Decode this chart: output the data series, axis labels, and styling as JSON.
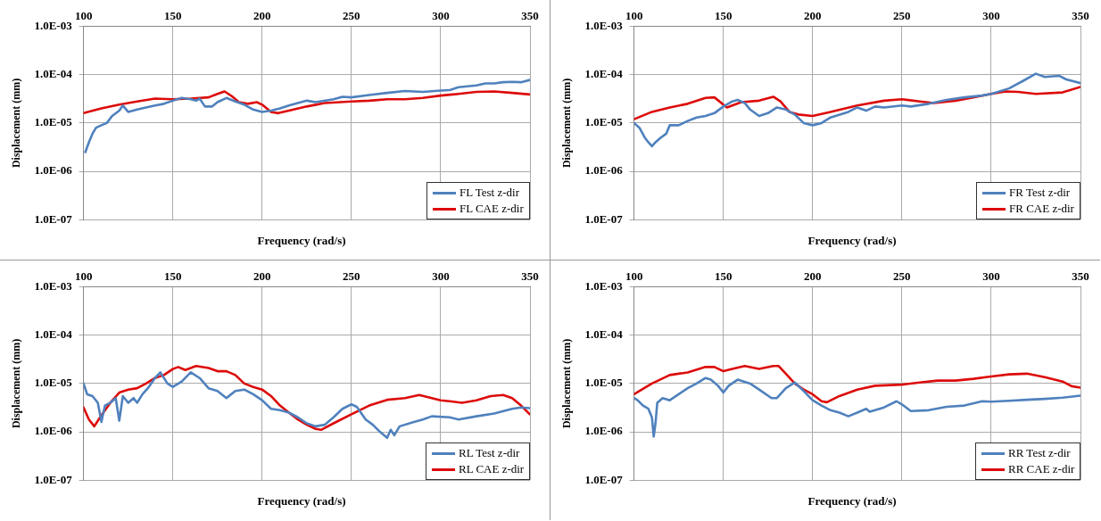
{
  "chart_data": [
    {
      "type": "line",
      "xlabel": "Frequency (rad/s)",
      "ylabel": "Displacement (mm)",
      "xlim": [
        100,
        350
      ],
      "xticks": [
        100,
        150,
        200,
        250,
        300,
        350
      ],
      "ylim": [
        1e-07,
        0.001
      ],
      "yticks": [
        {
          "value": 1e-07,
          "label": "1.0E-07"
        },
        {
          "value": 1e-06,
          "label": "1.0E-06"
        },
        {
          "value": 1e-05,
          "label": "1.0E-05"
        },
        {
          "value": 0.0001,
          "label": "1.0E-04"
        },
        {
          "value": 0.001,
          "label": "1.0E-03"
        }
      ],
      "log": "y",
      "grid": true,
      "legend": "bottom right",
      "marker": "none",
      "line_style": "solid",
      "series": [
        {
          "name": "FL Test z-dir",
          "color": "#4f81bd",
          "x": [
            101,
            103,
            105,
            107,
            110,
            113,
            116,
            120,
            122,
            125,
            130,
            135,
            140,
            145,
            150,
            155,
            160,
            163,
            165,
            168,
            172,
            175,
            180,
            185,
            190,
            195,
            200,
            205,
            210,
            215,
            220,
            225,
            230,
            240,
            245,
            250,
            260,
            270,
            280,
            290,
            300,
            305,
            310,
            320,
            325,
            330,
            335,
            340,
            345,
            350
          ],
          "values": [
            2.5e-06,
            4e-06,
            6e-06,
            8e-06,
            9e-06,
            1e-05,
            1.4e-05,
            1.8e-05,
            2.3e-05,
            1.7e-05,
            1.9e-05,
            2.1e-05,
            2.3e-05,
            2.5e-05,
            2.9e-05,
            3.3e-05,
            3.1e-05,
            2.9e-05,
            3.2e-05,
            2.2e-05,
            2.2e-05,
            2.7e-05,
            3.3e-05,
            2.8e-05,
            2.4e-05,
            1.9e-05,
            1.7e-05,
            1.8e-05,
            2e-05,
            2.3e-05,
            2.6e-05,
            2.9e-05,
            2.7e-05,
            3.1e-05,
            3.5e-05,
            3.4e-05,
            3.8e-05,
            4.2e-05,
            4.6e-05,
            4.4e-05,
            4.7e-05,
            4.8e-05,
            5.5e-05,
            6e-05,
            6.6e-05,
            6.6e-05,
            7e-05,
            7.1e-05,
            7e-05,
            7.8e-05
          ]
        },
        {
          "name": "FL CAE z-dir",
          "color": "#dd0a0a",
          "x": [
            100,
            110,
            120,
            130,
            140,
            150,
            160,
            170,
            175,
            179,
            183,
            187,
            192,
            197,
            200,
            205,
            209,
            215,
            225,
            235,
            250,
            260,
            270,
            280,
            290,
            300,
            310,
            320,
            330,
            340,
            350
          ],
          "values": [
            1.6e-05,
            2e-05,
            2.4e-05,
            2.8e-05,
            3.2e-05,
            3.1e-05,
            3.2e-05,
            3.4e-05,
            4e-05,
            4.5e-05,
            3.6e-05,
            2.7e-05,
            2.5e-05,
            2.7e-05,
            2.4e-05,
            1.7e-05,
            1.6e-05,
            1.8e-05,
            2.2e-05,
            2.6e-05,
            2.8e-05,
            2.9e-05,
            3.1e-05,
            3.1e-05,
            3.3e-05,
            3.7e-05,
            4e-05,
            4.4e-05,
            4.5e-05,
            4.2e-05,
            3.9e-05
          ]
        }
      ]
    },
    {
      "type": "line",
      "xlabel": "Frequency (rad/s)",
      "ylabel": "Displacement (mm)",
      "xlim": [
        100,
        350
      ],
      "xticks": [
        100,
        150,
        200,
        250,
        300,
        350
      ],
      "ylim": [
        1e-07,
        0.001
      ],
      "yticks": [
        {
          "value": 1e-07,
          "label": "1.0E-07"
        },
        {
          "value": 1e-06,
          "label": "1.0E-06"
        },
        {
          "value": 1e-05,
          "label": "1.0E-05"
        },
        {
          "value": 0.0001,
          "label": "1.0E-04"
        },
        {
          "value": 0.001,
          "label": "1.0E-03"
        }
      ],
      "log": "y",
      "grid": true,
      "legend": "bottom right",
      "marker": "none",
      "line_style": "solid",
      "series": [
        {
          "name": "FR Test z-dir",
          "color": "#4f81bd",
          "x": [
            100,
            103,
            106,
            108,
            110,
            112,
            115,
            118,
            120,
            125,
            130,
            135,
            140,
            145,
            150,
            155,
            158,
            162,
            165,
            170,
            175,
            180,
            185,
            190,
            195,
            200,
            205,
            210,
            220,
            225,
            230,
            235,
            240,
            250,
            255,
            265,
            275,
            285,
            295,
            300,
            310,
            318,
            325,
            330,
            338,
            342,
            350
          ],
          "values": [
            1e-05,
            8e-06,
            5e-06,
            4e-06,
            3.3e-06,
            4e-06,
            5e-06,
            6e-06,
            9e-06,
            9e-06,
            1.1e-05,
            1.3e-05,
            1.4e-05,
            1.6e-05,
            2.2e-05,
            2.8e-05,
            3e-05,
            2.6e-05,
            1.9e-05,
            1.4e-05,
            1.6e-05,
            2.1e-05,
            1.9e-05,
            1.5e-05,
            1e-05,
            9e-06,
            1e-05,
            1.3e-05,
            1.7e-05,
            2.1e-05,
            1.8e-05,
            2.2e-05,
            2.1e-05,
            2.3e-05,
            2.2e-05,
            2.5e-05,
            3e-05,
            3.4e-05,
            3.7e-05,
            4e-05,
            5.2e-05,
            7.5e-05,
            0.000105,
            9e-05,
            9.5e-05,
            8e-05,
            6.7e-05
          ]
        },
        {
          "name": "FR CAE z-dir",
          "color": "#dd0a0a",
          "x": [
            100,
            110,
            120,
            130,
            140,
            145,
            150,
            152,
            160,
            170,
            178,
            182,
            187,
            192,
            200,
            210,
            225,
            240,
            250,
            260,
            268,
            280,
            290,
            300,
            308,
            315,
            325,
            340,
            350
          ],
          "values": [
            1.2e-05,
            1.7e-05,
            2.1e-05,
            2.5e-05,
            3.3e-05,
            3.4e-05,
            2.4e-05,
            2.1e-05,
            2.7e-05,
            2.9e-05,
            3.5e-05,
            2.8e-05,
            1.7e-05,
            1.5e-05,
            1.4e-05,
            1.7e-05,
            2.3e-05,
            2.9e-05,
            3.1e-05,
            2.8e-05,
            2.6e-05,
            2.9e-05,
            3.4e-05,
            4e-05,
            4.5e-05,
            4.4e-05,
            4e-05,
            4.3e-05,
            5.6e-05
          ]
        }
      ]
    },
    {
      "type": "line",
      "xlabel": "Frequency (rad/s)",
      "ylabel": "Displacement (mm)",
      "xlim": [
        100,
        350
      ],
      "xticks": [
        100,
        150,
        200,
        250,
        300,
        350
      ],
      "ylim": [
        1e-07,
        0.001
      ],
      "yticks": [
        {
          "value": 1e-07,
          "label": "1.0E-07"
        },
        {
          "value": 1e-06,
          "label": "1.0E-06"
        },
        {
          "value": 1e-05,
          "label": "1.0E-05"
        },
        {
          "value": 0.0001,
          "label": "1.0E-04"
        },
        {
          "value": 0.001,
          "label": "1.0E-03"
        }
      ],
      "log": "y",
      "grid": true,
      "legend": "bottom right",
      "marker": "none",
      "line_style": "solid",
      "series": [
        {
          "name": "RL Test z-dir",
          "color": "#4f81bd",
          "x": [
            100,
            102,
            105,
            108,
            110,
            112,
            115,
            118,
            120,
            122,
            125,
            128,
            130,
            133,
            136,
            140,
            143,
            147,
            150,
            155,
            160,
            165,
            170,
            175,
            180,
            185,
            190,
            195,
            200,
            205,
            210,
            215,
            220,
            225,
            230,
            235,
            240,
            245,
            250,
            253,
            258,
            262,
            266,
            270,
            272,
            274,
            277,
            285,
            290,
            295,
            305,
            310,
            320,
            330,
            340,
            345,
            350
          ],
          "values": [
            1e-05,
            6e-06,
            5.5e-06,
            4e-06,
            1.6e-06,
            3.5e-06,
            4e-06,
            5e-06,
            1.7e-06,
            5.5e-06,
            4e-06,
            5e-06,
            4e-06,
            6e-06,
            8e-06,
            1.3e-05,
            1.7e-05,
            1e-05,
            8.5e-06,
            1.1e-05,
            1.7e-05,
            1.3e-05,
            8e-06,
            7e-06,
            5e-06,
            7e-06,
            7.5e-06,
            6e-06,
            4.5e-06,
            3e-06,
            2.8e-06,
            2.5e-06,
            2e-06,
            1.5e-06,
            1.3e-06,
            1.4e-06,
            2e-06,
            3e-06,
            3.7e-06,
            3.3e-06,
            1.8e-06,
            1.4e-06,
            1e-06,
            7.5e-07,
            1.1e-06,
            8.5e-07,
            1.3e-06,
            1.6e-06,
            1.8e-06,
            2.1e-06,
            2e-06,
            1.8e-06,
            2.1e-06,
            2.4e-06,
            3e-06,
            3.2e-06,
            3.1e-06
          ]
        },
        {
          "name": "RL CAE z-dir",
          "color": "#dd0a0a",
          "x": [
            100,
            103,
            106,
            110,
            115,
            120,
            125,
            130,
            135,
            140,
            145,
            150,
            153,
            157,
            163,
            170,
            175,
            180,
            185,
            190,
            195,
            200,
            205,
            210,
            215,
            220,
            225,
            230,
            233,
            240,
            250,
            260,
            270,
            280,
            288,
            295,
            300,
            305,
            312,
            320,
            328,
            335,
            340,
            345,
            350
          ],
          "values": [
            3.2e-06,
            1.8e-06,
            1.3e-06,
            2.2e-06,
            4e-06,
            6.5e-06,
            7.5e-06,
            8e-06,
            1e-05,
            1.3e-05,
            1.5e-05,
            2e-05,
            2.2e-05,
            1.9e-05,
            2.3e-05,
            2.1e-05,
            1.8e-05,
            1.8e-05,
            1.5e-05,
            1e-05,
            8.5e-06,
            7.5e-06,
            5.5e-06,
            3.5e-06,
            2.5e-06,
            1.8e-06,
            1.4e-06,
            1.15e-06,
            1.1e-06,
            1.5e-06,
            2.3e-06,
            3.5e-06,
            4.6e-06,
            5e-06,
            5.8e-06,
            5e-06,
            4.5e-06,
            4.3e-06,
            4e-06,
            4.5e-06,
            5.5e-06,
            5.8e-06,
            5e-06,
            3.5e-06,
            2.3e-06
          ]
        }
      ]
    },
    {
      "type": "line",
      "xlabel": "Frequency (rad/s)",
      "ylabel": "Displacement (mm)",
      "xlim": [
        100,
        350
      ],
      "xticks": [
        100,
        150,
        200,
        250,
        300,
        350
      ],
      "ylim": [
        1e-07,
        0.001
      ],
      "yticks": [
        {
          "value": 1e-07,
          "label": "1.0E-07"
        },
        {
          "value": 1e-06,
          "label": "1.0E-06"
        },
        {
          "value": 1e-05,
          "label": "1.0E-05"
        },
        {
          "value": 0.0001,
          "label": "1.0E-04"
        },
        {
          "value": 0.001,
          "label": "1.0E-03"
        }
      ],
      "log": "y",
      "grid": true,
      "legend": "bottom right",
      "marker": "none",
      "line_style": "solid",
      "series": [
        {
          "name": "RR Test z-dir",
          "color": "#4f81bd",
          "x": [
            100,
            102,
            105,
            108,
            110,
            111,
            112,
            113,
            116,
            120,
            125,
            130,
            135,
            140,
            143,
            147,
            150,
            153,
            158,
            165,
            170,
            177,
            180,
            185,
            190,
            195,
            200,
            205,
            210,
            215,
            220,
            225,
            230,
            232,
            240,
            247,
            250,
            255,
            265,
            275,
            285,
            295,
            300,
            310,
            320,
            330,
            340,
            350
          ],
          "values": [
            5e-06,
            4.5e-06,
            3.5e-06,
            3e-06,
            2e-06,
            8e-07,
            1.5e-06,
            4e-06,
            5e-06,
            4.5e-06,
            6e-06,
            8e-06,
            1e-05,
            1.3e-05,
            1.2e-05,
            9e-06,
            6.5e-06,
            9e-06,
            1.2e-05,
            1e-05,
            7.5e-06,
            5e-06,
            5e-06,
            8e-06,
            1.05e-05,
            7e-06,
            4.5e-06,
            3.5e-06,
            2.8e-06,
            2.5e-06,
            2.1e-06,
            2.5e-06,
            3e-06,
            2.6e-06,
            3.2e-06,
            4.3e-06,
            3.7e-06,
            2.7e-06,
            2.8e-06,
            3.3e-06,
            3.5e-06,
            4.3e-06,
            4.2e-06,
            4.4e-06,
            4.6e-06,
            4.8e-06,
            5.1e-06,
            5.6e-06
          ]
        },
        {
          "name": "RR CAE z-dir",
          "color": "#dd0a0a",
          "x": [
            100,
            110,
            120,
            130,
            140,
            145,
            150,
            155,
            162,
            170,
            178,
            181,
            185,
            190,
            195,
            200,
            205,
            208,
            215,
            225,
            235,
            250,
            260,
            270,
            280,
            290,
            300,
            310,
            320,
            330,
            340,
            345,
            350
          ],
          "values": [
            6e-06,
            1e-05,
            1.5e-05,
            1.7e-05,
            2.2e-05,
            2.2e-05,
            1.8e-05,
            2e-05,
            2.3e-05,
            2e-05,
            2.3e-05,
            2.3e-05,
            1.6e-05,
            1e-05,
            7.5e-06,
            6e-06,
            4.3e-06,
            4.1e-06,
            5.5e-06,
            7.5e-06,
            9e-06,
            9.5e-06,
            1.05e-05,
            1.15e-05,
            1.15e-05,
            1.25e-05,
            1.4e-05,
            1.55e-05,
            1.6e-05,
            1.35e-05,
            1.1e-05,
            8.8e-06,
            8.2e-06
          ]
        }
      ]
    }
  ]
}
